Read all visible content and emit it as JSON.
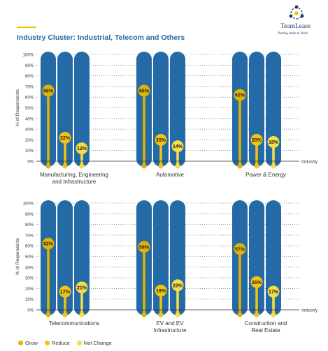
{
  "brand": {
    "name": "TeamLease",
    "tagline": "Putting India to Work"
  },
  "header": {
    "title": "Industry Cluster: Industrial, Telecom and Others"
  },
  "chart_data": {
    "type": "bar",
    "ylabel": "% of Respondents",
    "xlabel": "Industry",
    "ylim": [
      0,
      100
    ],
    "yticks": [
      "0%",
      "10%",
      "20%",
      "30%",
      "40%",
      "50%",
      "60%",
      "70%",
      "80%",
      "90%",
      "100%"
    ],
    "series_names": [
      "Grow",
      "Reduce",
      "Not Change"
    ],
    "colors": {
      "Grow": "#e0b400",
      "Reduce": "#f2c310",
      "Not Change": "#f6dd4a",
      "pill": "#236aa6",
      "title": "#1e6aa8"
    },
    "panels": [
      {
        "categories": [
          {
            "name": "Manufacturing, Engineering and Infrastructure",
            "label_lines": [
              "Manufacturing, Engineering",
              "and Infrastructure"
            ],
            "values": [
              66,
              22,
              12
            ],
            "value_labels": [
              "66%",
              "22%",
              "12%"
            ]
          },
          {
            "name": "Automotive",
            "label_lines": [
              "Automotive"
            ],
            "values": [
              66,
              20,
              14
            ],
            "value_labels": [
              "66%",
              "20%",
              "14%"
            ]
          },
          {
            "name": "Power & Energy",
            "label_lines": [
              "Power & Energy"
            ],
            "values": [
              62,
              20,
              18
            ],
            "value_labels": [
              "62%",
              "20%",
              "18%"
            ]
          }
        ]
      },
      {
        "categories": [
          {
            "name": "Telecommunications",
            "label_lines": [
              "Telecommunications"
            ],
            "values": [
              62,
              17,
              21
            ],
            "value_labels": [
              "62%",
              "17%",
              "21%"
            ]
          },
          {
            "name": "EV and EV Infrastructure",
            "label_lines": [
              "EV and EV",
              "Infrastructure"
            ],
            "values": [
              59,
              18,
              23
            ],
            "value_labels": [
              "59%",
              "18%",
              "23%"
            ]
          },
          {
            "name": "Construction and Real Estate",
            "label_lines": [
              "Construction and",
              "Real Estate"
            ],
            "values": [
              57,
              26,
              17
            ],
            "value_labels": [
              "57%",
              "26%",
              "17%"
            ]
          }
        ]
      }
    ]
  },
  "legend": {
    "items": [
      {
        "label": "Grow",
        "color": "#e0b400"
      },
      {
        "label": "Reduce",
        "color": "#f2c310"
      },
      {
        "label": "Not Change",
        "color": "#f6dd4a"
      }
    ]
  }
}
